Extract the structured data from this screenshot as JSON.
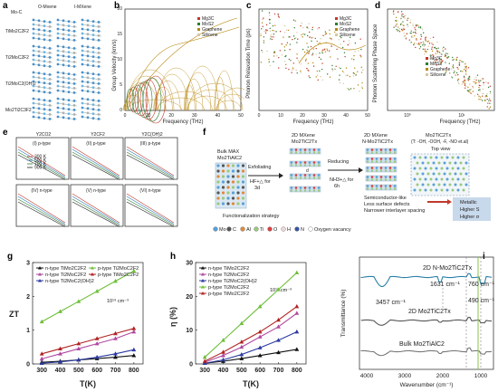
{
  "panels": {
    "a": {
      "label": "a",
      "header_left": "Mo-C",
      "header_right_1": "O-Mxene",
      "header_right_2": "I-MXene",
      "row_labels": [
        "TiMo2C2F2",
        "Ti2MoC2F2",
        "Ti2MoC2(OH)2",
        "Mo2Ti2C3F2"
      ]
    },
    "b": {
      "label": "b",
      "ylabel": "Group Velocity (km/s)",
      "xlabel": "Frequency (THz)",
      "legend": [
        "Mg3C",
        "MoS2",
        "Graphene",
        "Silicene"
      ],
      "legend_colors": [
        "#c0392b",
        "#2e7d32",
        "#b8860b",
        "#d4c6a0"
      ],
      "xticks": [
        "0",
        "10",
        "20",
        "30",
        "40",
        "50"
      ],
      "yticks": [
        "0",
        "5",
        "10",
        "15",
        "20"
      ]
    },
    "c": {
      "label": "c",
      "ylabel": "Phonon Relaxation Time (ps)",
      "xlabel": "Frequency (THz)",
      "legend": [
        "Mg3C",
        "MoS2",
        "Graphene",
        "Silicene"
      ],
      "legend_colors": [
        "#c0392b",
        "#2e7d32",
        "#b8860b",
        "#d4c6a0"
      ],
      "xticks": [
        "0",
        "10",
        "20",
        "30",
        "40",
        "50"
      ]
    },
    "d": {
      "label": "d",
      "ylabel": "Phonon Scattering Phase Space",
      "xlabel": "Frequency (THz)",
      "legend": [
        "Mg3C",
        "MoS2",
        "Graphene",
        "Silicene"
      ],
      "legend_colors": [
        "#c0392b",
        "#2e7d32",
        "#b8860b",
        "#d4c6a0"
      ],
      "xticks": [
        "10⁰",
        "10¹"
      ]
    },
    "e": {
      "label": "e",
      "col_titles": [
        "Y2CO2",
        "Y2CF2",
        "Y2C(OH)2"
      ],
      "sub_titles_top": [
        "(I) p-type",
        "(II) p-type",
        "(III) p-type"
      ],
      "sub_titles_bottom": [
        "(IV) n-type",
        "(V) n-type",
        "(VI) n-type"
      ],
      "legend": [
        "300 K",
        "500 K",
        "700 K",
        "900 K"
      ]
    },
    "f": {
      "label": "f",
      "bulk_title": "Bulk MAX",
      "bulk_formula": "Mo2TiAlC2",
      "step1_line1": "Exfoliating",
      "step1_line2": "HF+△ for",
      "step1_line3": "3d",
      "mxene1_title": "2D MXene",
      "mxene1_formula": "Mo2TiC2Tx",
      "step2_line1": "Reducing",
      "step2_line2": "NH3+△ for",
      "step2_line3": "6h",
      "mxene2_title": "2D MXene",
      "mxene2_formula": "N-Mo2TiC2Tx",
      "final_formula": "Mo2TiC2Tx",
      "final_terms": "(T: -OH, -OOH, -F, -NO et.al)",
      "top_view": "Top view",
      "strategy": "Functionalization strategy",
      "note1": "Semiconductor-like",
      "note2": "Less surface defects",
      "note3": "Narrower interlayer spacing",
      "out1": "Metallic",
      "out2": "Higher S",
      "out3": "Higher σ",
      "legend_items": [
        "Mo",
        "C",
        "Al",
        "Ti",
        "O",
        "H",
        "N",
        "Oxygen vacancy"
      ],
      "legend_colors": [
        "#5aa0d8",
        "#555555",
        "#e08a3c",
        "#9bc97d",
        "#d94040",
        "#f0d9d9",
        "#3554a6",
        "#ffffff"
      ]
    },
    "g": {
      "label": "g",
      "ylabel": "ZT",
      "xlabel": "T(K)",
      "annotation": "10¹⁹ cm⁻³"
    },
    "h": {
      "label": "h",
      "ylabel": "η (%)",
      "xlabel": "T(K)",
      "annotation": "10¹⁹ cm⁻³"
    },
    "i": {
      "label": "i",
      "ylabel": "Transmittance (%)",
      "xlabel": "Wavenumber (cm⁻¹)",
      "curve_labels": [
        "2D N-Mo2TiC2Tx",
        "2D Mo2TiC2Tx",
        "Bulk Mo2TiAlC2"
      ],
      "peak_labels": [
        "3457 cm⁻¹",
        "1631 cm⁻¹",
        "760 cm⁻¹",
        "490 cm⁻¹"
      ]
    }
  },
  "chart_data": [
    {
      "id": "g",
      "type": "line",
      "title": "",
      "xlabel": "T(K)",
      "ylabel": "ZT",
      "x": [
        300,
        400,
        500,
        600,
        700,
        800
      ],
      "xlim": [
        250,
        850
      ],
      "ylim": [
        0,
        3.0
      ],
      "yticks": [
        0,
        1,
        2,
        3
      ],
      "xticks": [
        300,
        400,
        500,
        600,
        700,
        800
      ],
      "series": [
        {
          "name": "n-type TiMo2C2F2",
          "color": "#111111",
          "marker": "triangle",
          "values": [
            0.05,
            0.08,
            0.12,
            0.16,
            0.2,
            0.25
          ]
        },
        {
          "name": "n-type Ti2MoC2F2",
          "color": "#b04aa0",
          "marker": "triangle",
          "values": [
            0.15,
            0.3,
            0.45,
            0.6,
            0.75,
            0.95
          ]
        },
        {
          "name": "n-type Ti2MoC2(OH)2",
          "color": "#2b3aa0",
          "marker": "triangle",
          "values": [
            0.02,
            0.06,
            0.12,
            0.2,
            0.3,
            0.42
          ]
        },
        {
          "name": "p-type Ti2MoC2F2",
          "color": "#6fbf3a",
          "marker": "triangle",
          "values": [
            1.25,
            1.55,
            1.85,
            2.15,
            2.45,
            2.75
          ]
        },
        {
          "name": "p-type TiMo2C2F2",
          "color": "#b22222",
          "marker": "triangle",
          "values": [
            0.3,
            0.45,
            0.6,
            0.75,
            0.9,
            1.05
          ]
        }
      ]
    },
    {
      "id": "h",
      "type": "line",
      "title": "",
      "xlabel": "T(K)",
      "ylabel": "η (%)",
      "x": [
        300,
        400,
        500,
        600,
        700,
        800
      ],
      "xlim": [
        250,
        850
      ],
      "ylim": [
        0,
        30
      ],
      "yticks": [
        0,
        10,
        20,
        30
      ],
      "xticks": [
        300,
        400,
        500,
        600,
        700,
        800
      ],
      "series": [
        {
          "name": "n-type TiMo2C2F2",
          "color": "#111111",
          "marker": "triangle",
          "values": [
            0.2,
            0.8,
            1.6,
            2.5,
            3.4,
            4.3
          ]
        },
        {
          "name": "n-type Ti2MoC2F2",
          "color": "#b04aa0",
          "marker": "triangle",
          "values": [
            0.5,
            2.5,
            5,
            8,
            11,
            15
          ]
        },
        {
          "name": "n-type Ti2MoC2(OH)2",
          "color": "#2b3aa0",
          "marker": "triangle",
          "values": [
            0.2,
            1.2,
            2.8,
            4.8,
            7,
            9.5
          ]
        },
        {
          "name": "p-type Ti2MoC2F2",
          "color": "#6fbf3a",
          "marker": "triangle",
          "values": [
            2,
            7,
            12,
            17,
            22,
            27
          ]
        },
        {
          "name": "p-type TiMo2C2F2",
          "color": "#b22222",
          "marker": "triangle",
          "values": [
            0.8,
            3.5,
            6.5,
            9.5,
            13,
            17
          ]
        }
      ]
    }
  ]
}
